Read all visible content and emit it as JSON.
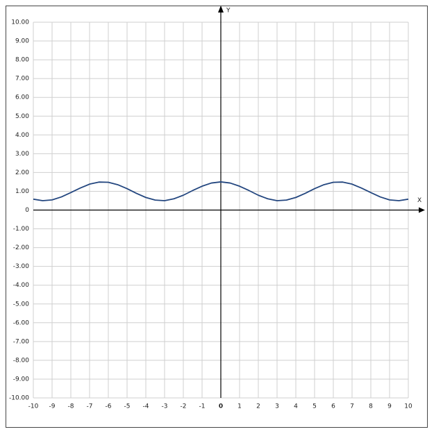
{
  "chart_data": {
    "type": "line",
    "x_label": "X",
    "y_label": "Y",
    "x": [
      -10,
      -9.5,
      -9,
      -8.5,
      -8,
      -7.5,
      -7,
      -6.5,
      -6,
      -5.5,
      -5,
      -4.5,
      -4,
      -3.5,
      -3,
      -2.5,
      -2,
      -1.5,
      -1,
      -0.5,
      0,
      0.5,
      1,
      1.5,
      2,
      2.5,
      3,
      3.5,
      4,
      4.5,
      5,
      5.5,
      6,
      6.5,
      7,
      7.5,
      8,
      8.5,
      9,
      9.5,
      10
    ],
    "series": [
      {
        "color": "#23467f",
        "values": [
          0.58,
          0.5,
          0.54,
          0.7,
          0.93,
          1.17,
          1.38,
          1.49,
          1.48,
          1.35,
          1.14,
          0.89,
          0.67,
          0.53,
          0.5,
          0.6,
          0.79,
          1.04,
          1.27,
          1.44,
          1.5,
          1.44,
          1.27,
          1.04,
          0.79,
          0.6,
          0.5,
          0.53,
          0.67,
          0.89,
          1.14,
          1.35,
          1.48,
          1.49,
          1.38,
          1.17,
          0.93,
          0.7,
          0.54,
          0.5,
          0.58
        ]
      }
    ],
    "xlim": [
      -10,
      10
    ],
    "ylim": [
      -10,
      10
    ],
    "xticks": [
      -10,
      -9,
      -8,
      -7,
      -6,
      -5,
      -4,
      -3,
      -2,
      -1,
      0,
      1,
      2,
      3,
      4,
      5,
      6,
      7,
      8,
      9,
      10
    ],
    "yticks": [
      {
        "value": -10,
        "label": "-10.00"
      },
      {
        "value": -9,
        "label": "-9.00"
      },
      {
        "value": -8,
        "label": "-8.00"
      },
      {
        "value": -7,
        "label": "-7.00"
      },
      {
        "value": -6,
        "label": "-6.00"
      },
      {
        "value": -5,
        "label": "-5.00"
      },
      {
        "value": -4,
        "label": "-4.00"
      },
      {
        "value": -3,
        "label": "-3.00"
      },
      {
        "value": -2,
        "label": "-2.00"
      },
      {
        "value": -1,
        "label": "-1.00"
      },
      0,
      {
        "value": 1,
        "label": "1.00"
      },
      {
        "value": 2,
        "label": "2.00"
      },
      {
        "value": 3,
        "label": "3.00"
      },
      {
        "value": 4,
        "label": "4.00"
      },
      {
        "value": 5,
        "label": "5.00"
      },
      {
        "value": 6,
        "label": "6.00"
      },
      {
        "value": 7,
        "label": "7.00"
      },
      {
        "value": 8,
        "label": "8.00"
      },
      {
        "value": 9,
        "label": "9.00"
      },
      {
        "value": 10,
        "label": "10.00"
      }
    ],
    "grid": true
  }
}
